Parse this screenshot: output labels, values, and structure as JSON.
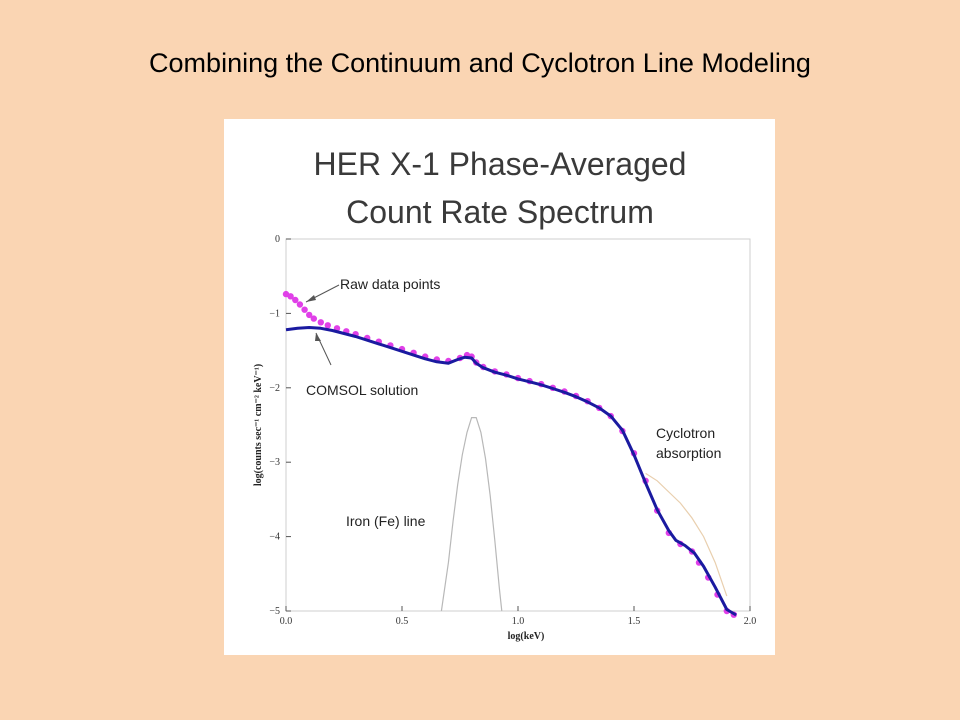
{
  "slide": {
    "title": "Combining the Continuum and Cyclotron Line Modeling"
  },
  "colors": {
    "background": "#fad5b3",
    "raw_points": "#e040e8",
    "comsol_line": "#1a1aa0",
    "fe_line": "#b8b8b8",
    "cyclotron_line": "#e9cfae"
  },
  "chart_data": {
    "type": "line",
    "title_lines": [
      "HER X-1 Phase-Averaged",
      "Count Rate Spectrum"
    ],
    "xlabel": "log(keV)",
    "ylabel": "log(counts sec⁻¹ cm⁻² keV⁻¹)",
    "xlim": [
      0,
      2.0
    ],
    "ylim": [
      -5,
      0
    ],
    "xticks": [
      {
        "value": 0.0,
        "label": "0.0"
      },
      {
        "value": 0.5,
        "label": "0.5"
      },
      {
        "value": 1.0,
        "label": "1.0"
      },
      {
        "value": 1.5,
        "label": "1.5"
      },
      {
        "value": 2.0,
        "label": "2.0"
      }
    ],
    "yticks": [
      {
        "value": 0,
        "label": "0"
      },
      {
        "value": -1,
        "label": "−1"
      },
      {
        "value": -2,
        "label": "−2"
      },
      {
        "value": -3,
        "label": "−3"
      },
      {
        "value": -4,
        "label": "−4"
      },
      {
        "value": -5,
        "label": "−5"
      }
    ],
    "grid": false,
    "annotations": {
      "raw": "Raw data points",
      "comsol": "COMSOL solution",
      "iron": "Iron (Fe) line",
      "cyclotron_1": "Cyclotron",
      "cyclotron_2": "absorption"
    },
    "series": [
      {
        "kind": "points",
        "x": [
          0.0,
          0.02,
          0.04,
          0.06,
          0.08,
          0.1,
          0.12,
          0.15,
          0.18,
          0.22,
          0.26,
          0.3,
          0.35,
          0.4,
          0.45,
          0.5,
          0.55,
          0.6,
          0.65,
          0.7,
          0.75,
          0.78,
          0.8,
          0.82,
          0.85,
          0.9,
          0.95,
          1.0,
          1.05,
          1.1,
          1.15,
          1.2,
          1.25,
          1.3,
          1.35,
          1.4,
          1.45,
          1.5,
          1.55,
          1.6,
          1.65,
          1.7,
          1.75,
          1.78,
          1.82,
          1.86,
          1.9,
          1.93
        ],
        "y": [
          -0.74,
          -0.77,
          -0.82,
          -0.88,
          -0.95,
          -1.02,
          -1.07,
          -1.12,
          -1.16,
          -1.2,
          -1.24,
          -1.28,
          -1.33,
          -1.38,
          -1.43,
          -1.48,
          -1.53,
          -1.58,
          -1.62,
          -1.64,
          -1.6,
          -1.56,
          -1.58,
          -1.66,
          -1.72,
          -1.78,
          -1.82,
          -1.87,
          -1.91,
          -1.95,
          -2.0,
          -2.05,
          -2.11,
          -2.18,
          -2.27,
          -2.38,
          -2.58,
          -2.88,
          -3.25,
          -3.65,
          -3.95,
          -4.1,
          -4.2,
          -4.35,
          -4.55,
          -4.78,
          -5.0,
          -5.05
        ]
      },
      {
        "kind": "line",
        "x": [
          0.0,
          0.05,
          0.1,
          0.15,
          0.2,
          0.25,
          0.3,
          0.35,
          0.4,
          0.45,
          0.5,
          0.55,
          0.6,
          0.65,
          0.7,
          0.74,
          0.77,
          0.8,
          0.82,
          0.85,
          0.9,
          0.95,
          1.0,
          1.05,
          1.1,
          1.15,
          1.2,
          1.25,
          1.3,
          1.35,
          1.4,
          1.45,
          1.5,
          1.55,
          1.6,
          1.65,
          1.68,
          1.72,
          1.76,
          1.8,
          1.85,
          1.9,
          1.94
        ],
        "y": [
          -1.22,
          -1.2,
          -1.19,
          -1.2,
          -1.23,
          -1.27,
          -1.31,
          -1.36,
          -1.41,
          -1.46,
          -1.51,
          -1.56,
          -1.61,
          -1.65,
          -1.67,
          -1.62,
          -1.59,
          -1.6,
          -1.67,
          -1.73,
          -1.79,
          -1.83,
          -1.88,
          -1.92,
          -1.96,
          -2.01,
          -2.06,
          -2.12,
          -2.19,
          -2.27,
          -2.38,
          -2.57,
          -2.9,
          -3.28,
          -3.64,
          -3.92,
          -4.05,
          -4.12,
          -4.22,
          -4.4,
          -4.68,
          -4.98,
          -5.1
        ]
      },
      {
        "kind": "line",
        "x": [
          0.67,
          0.7,
          0.72,
          0.74,
          0.76,
          0.78,
          0.8,
          0.82,
          0.84,
          0.86,
          0.88,
          0.9,
          0.92,
          0.93
        ],
        "y": [
          -5.0,
          -4.35,
          -3.8,
          -3.3,
          -2.9,
          -2.6,
          -2.4,
          -2.4,
          -2.6,
          -2.95,
          -3.45,
          -4.05,
          -4.7,
          -5.0
        ]
      },
      {
        "kind": "line",
        "x": [
          1.55,
          1.6,
          1.65,
          1.7,
          1.75,
          1.8,
          1.85,
          1.9
        ],
        "y": [
          -3.15,
          -3.25,
          -3.4,
          -3.55,
          -3.75,
          -4.0,
          -4.35,
          -4.8
        ]
      }
    ]
  }
}
